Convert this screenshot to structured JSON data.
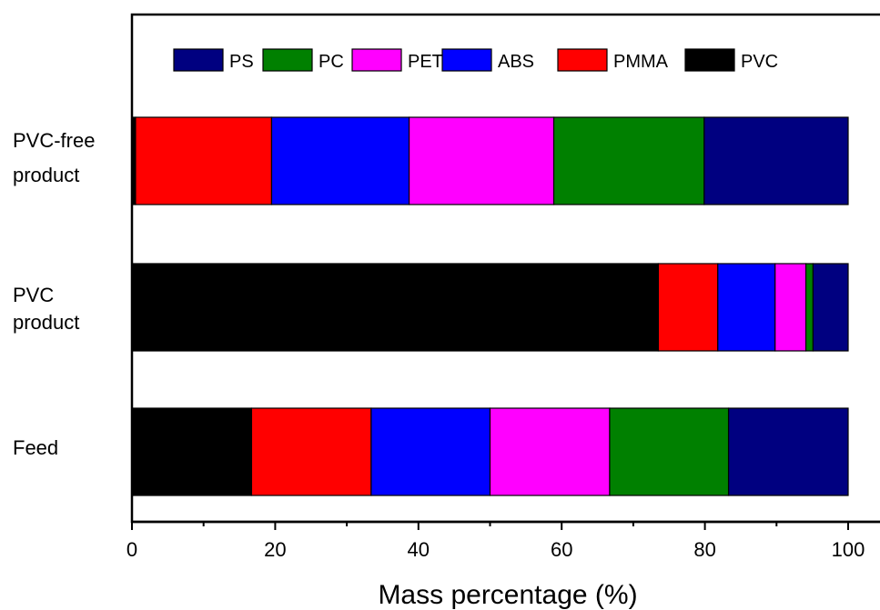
{
  "chart_data": {
    "type": "bar",
    "orientation": "horizontal",
    "stacked": true,
    "categories": [
      {
        "lines": [
          "PVC-free",
          "product"
        ]
      },
      {
        "lines": [
          "PVC",
          "product"
        ]
      },
      {
        "lines": [
          "Feed"
        ]
      }
    ],
    "series": [
      {
        "name": "PVC",
        "color": "#000000",
        "values": [
          0.5,
          73.5,
          16.7
        ]
      },
      {
        "name": "PMMA",
        "color": "#ff0000",
        "values": [
          19.0,
          8.3,
          16.7
        ]
      },
      {
        "name": "ABS",
        "color": "#0000ff",
        "values": [
          19.2,
          8.0,
          16.6
        ]
      },
      {
        "name": "PET",
        "color": "#ff00ff",
        "values": [
          20.2,
          4.3,
          16.7
        ]
      },
      {
        "name": "PC",
        "color": "#008000",
        "values": [
          21.0,
          1.0,
          16.6
        ]
      },
      {
        "name": "PS",
        "color": "#000080",
        "values": [
          20.1,
          4.9,
          16.7
        ]
      }
    ],
    "legend_order": [
      "PS",
      "PC",
      "PET",
      "ABS",
      "PMMA",
      "PVC"
    ],
    "legend_position": "top",
    "xlabel": "Mass percentage (%)",
    "ylabel": "",
    "xlim": [
      0,
      100
    ],
    "xticks": [
      0,
      20,
      40,
      60,
      80,
      100
    ],
    "grid": false
  }
}
